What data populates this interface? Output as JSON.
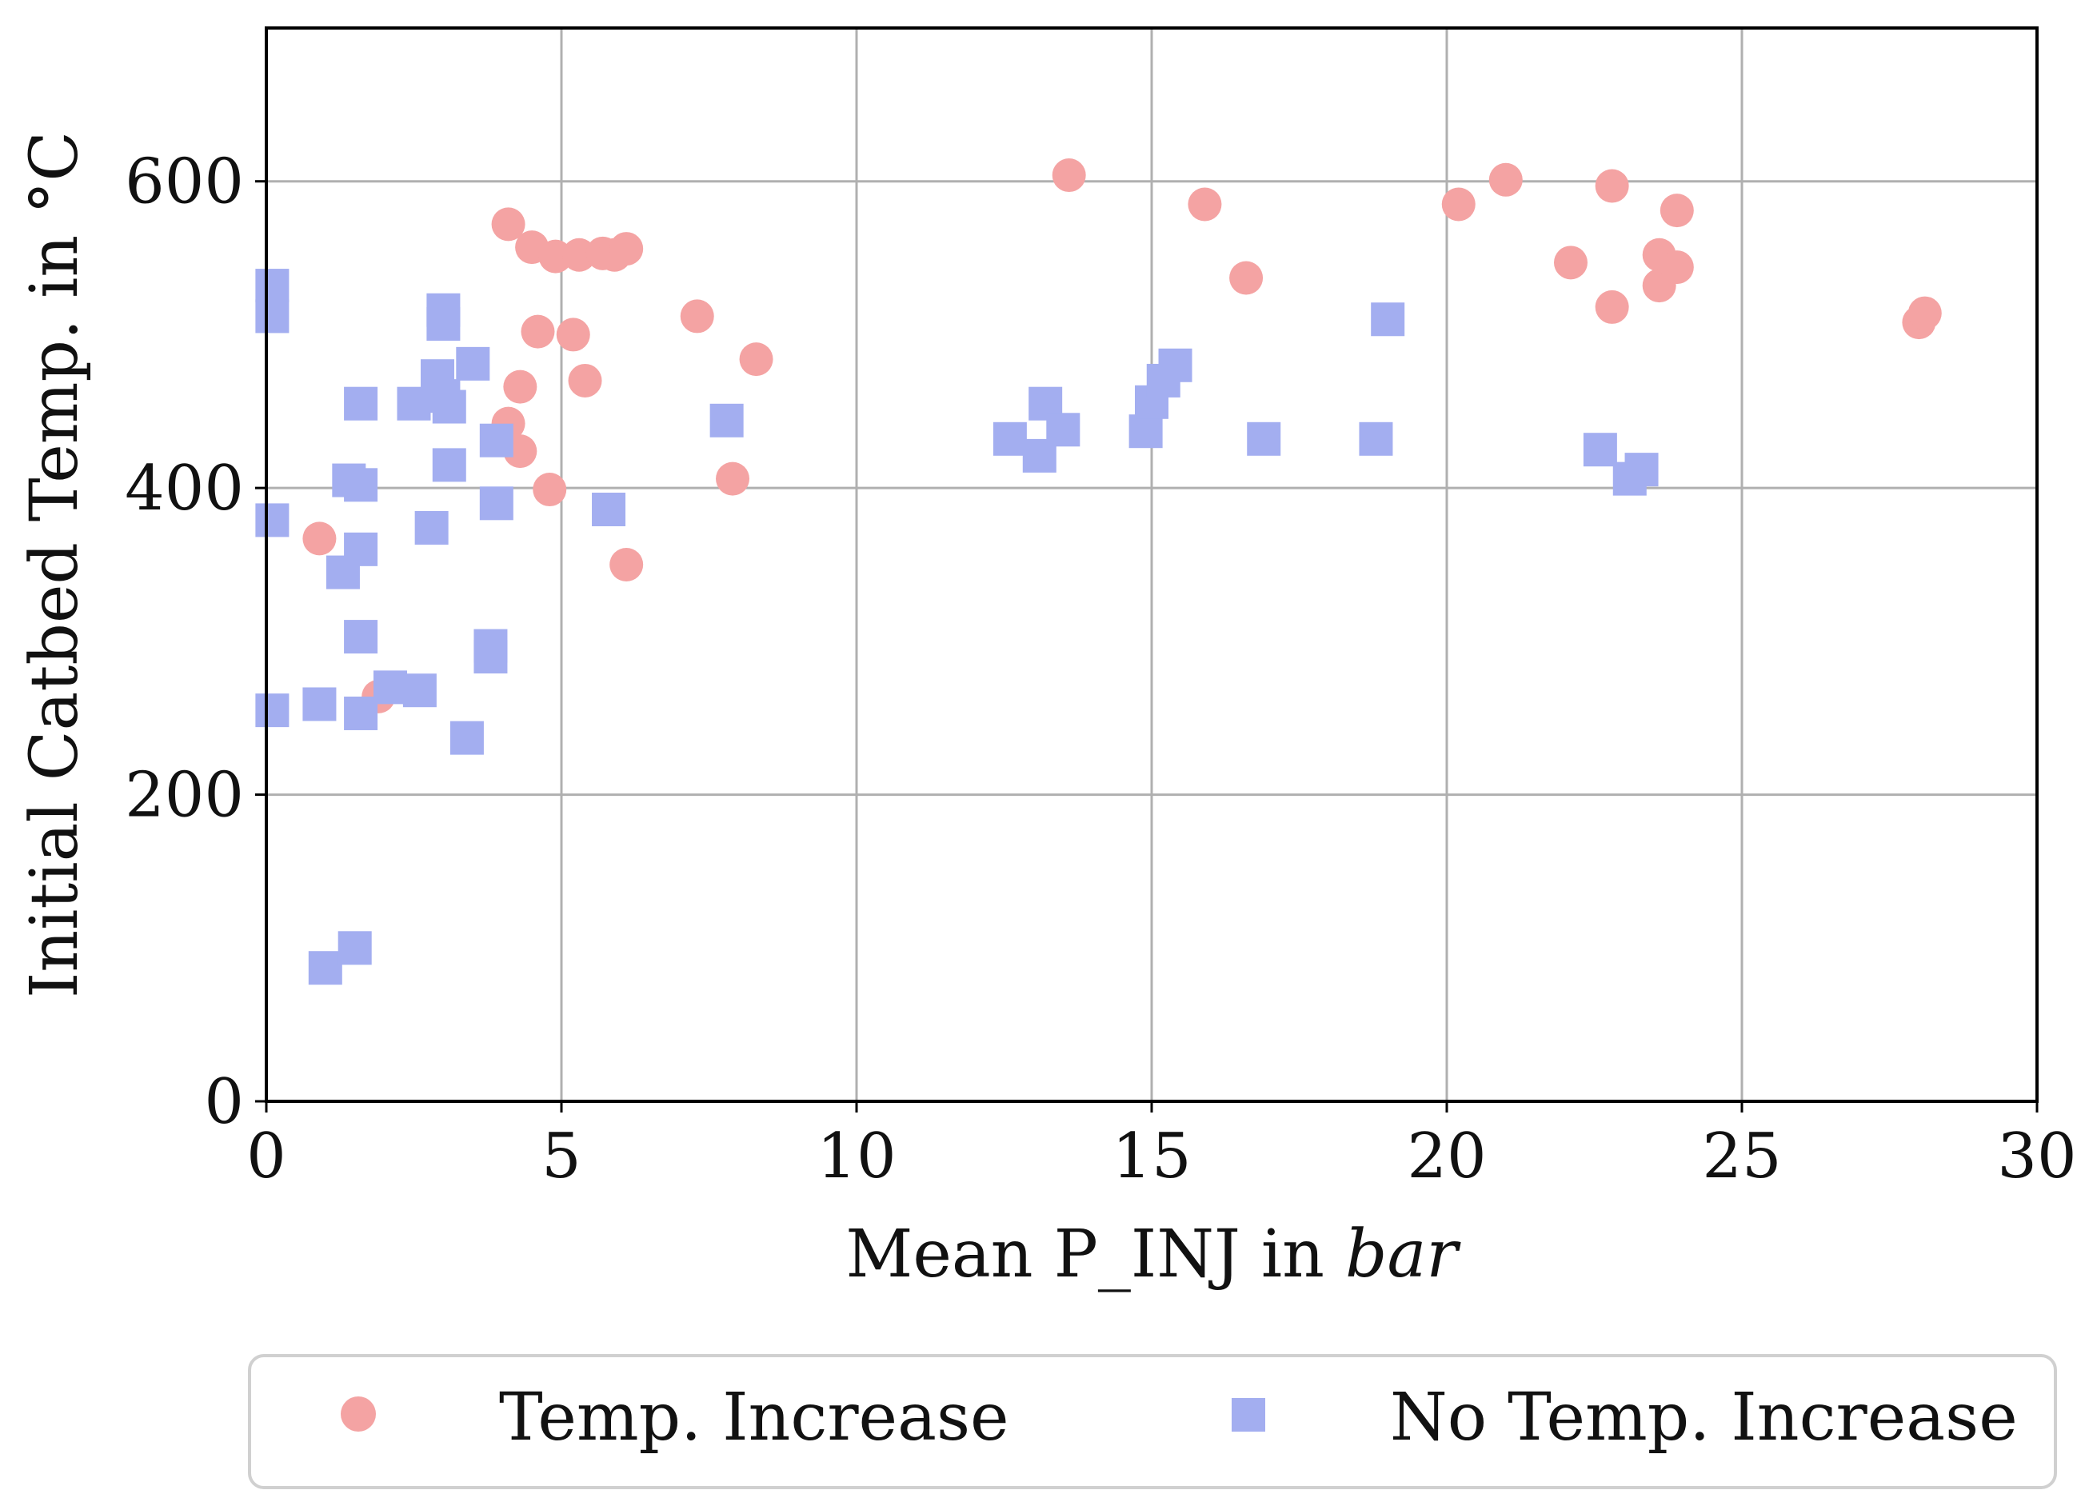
{
  "chart_data": {
    "type": "scatter",
    "title": "",
    "xlabel_prefix": "Mean P_INJ in ",
    "xlabel_italic": "bar",
    "ylabel": "Initial Catbed Temp. in °C",
    "xlim": [
      0,
      30
    ],
    "ylim": [
      0,
      700
    ],
    "xticks": [
      0,
      5,
      10,
      15,
      20,
      25,
      30
    ],
    "yticks": [
      0,
      200,
      400,
      600
    ],
    "grid": true,
    "legend_position": "bottom-outside",
    "series": [
      {
        "name": "Temp. Increase",
        "marker": "circle",
        "color": "#f4a3a3",
        "points": [
          [
            0.9,
            367
          ],
          [
            1.9,
            264
          ],
          [
            4.1,
            572
          ],
          [
            4.1,
            442
          ],
          [
            4.3,
            466
          ],
          [
            4.3,
            424
          ],
          [
            4.5,
            557
          ],
          [
            4.6,
            502
          ],
          [
            4.8,
            399
          ],
          [
            4.9,
            551
          ],
          [
            5.2,
            500
          ],
          [
            5.3,
            552
          ],
          [
            5.4,
            470
          ],
          [
            5.7,
            553
          ],
          [
            5.9,
            552
          ],
          [
            6.1,
            556
          ],
          [
            6.1,
            350
          ],
          [
            7.3,
            512
          ],
          [
            7.9,
            406
          ],
          [
            8.3,
            484
          ],
          [
            13.6,
            604
          ],
          [
            15.9,
            585
          ],
          [
            16.6,
            537
          ],
          [
            20.2,
            585
          ],
          [
            21.0,
            601
          ],
          [
            22.1,
            547
          ],
          [
            22.8,
            597
          ],
          [
            22.8,
            518
          ],
          [
            23.6,
            552
          ],
          [
            23.6,
            532
          ],
          [
            23.9,
            581
          ],
          [
            23.9,
            544
          ],
          [
            28.0,
            508
          ],
          [
            28.1,
            514
          ]
        ]
      },
      {
        "name": "No Temp. Increase",
        "marker": "square",
        "color": "#a3aef0",
        "points": [
          [
            0.1,
            532
          ],
          [
            0.1,
            512
          ],
          [
            0.1,
            379
          ],
          [
            0.1,
            255
          ],
          [
            0.9,
            259
          ],
          [
            1.0,
            87
          ],
          [
            1.3,
            345
          ],
          [
            1.4,
            405
          ],
          [
            1.5,
            100
          ],
          [
            1.6,
            455
          ],
          [
            1.6,
            402
          ],
          [
            1.6,
            360
          ],
          [
            1.6,
            303
          ],
          [
            1.6,
            253
          ],
          [
            2.1,
            270
          ],
          [
            2.5,
            455
          ],
          [
            2.6,
            268
          ],
          [
            2.8,
            374
          ],
          [
            2.9,
            473
          ],
          [
            3.0,
            460
          ],
          [
            3.0,
            516
          ],
          [
            3.0,
            507
          ],
          [
            3.1,
            453
          ],
          [
            3.1,
            415
          ],
          [
            3.4,
            237
          ],
          [
            3.5,
            481
          ],
          [
            3.8,
            290
          ],
          [
            3.8,
            297
          ],
          [
            3.9,
            390
          ],
          [
            3.9,
            431
          ],
          [
            5.8,
            386
          ],
          [
            7.8,
            444
          ],
          [
            12.6,
            432
          ],
          [
            13.1,
            421
          ],
          [
            13.2,
            455
          ],
          [
            13.5,
            438
          ],
          [
            14.9,
            437
          ],
          [
            15.0,
            456
          ],
          [
            15.2,
            470
          ],
          [
            15.4,
            480
          ],
          [
            16.9,
            432
          ],
          [
            18.8,
            432
          ],
          [
            19.0,
            510
          ],
          [
            22.6,
            425
          ],
          [
            23.1,
            406
          ],
          [
            23.3,
            412
          ]
        ]
      }
    ]
  }
}
